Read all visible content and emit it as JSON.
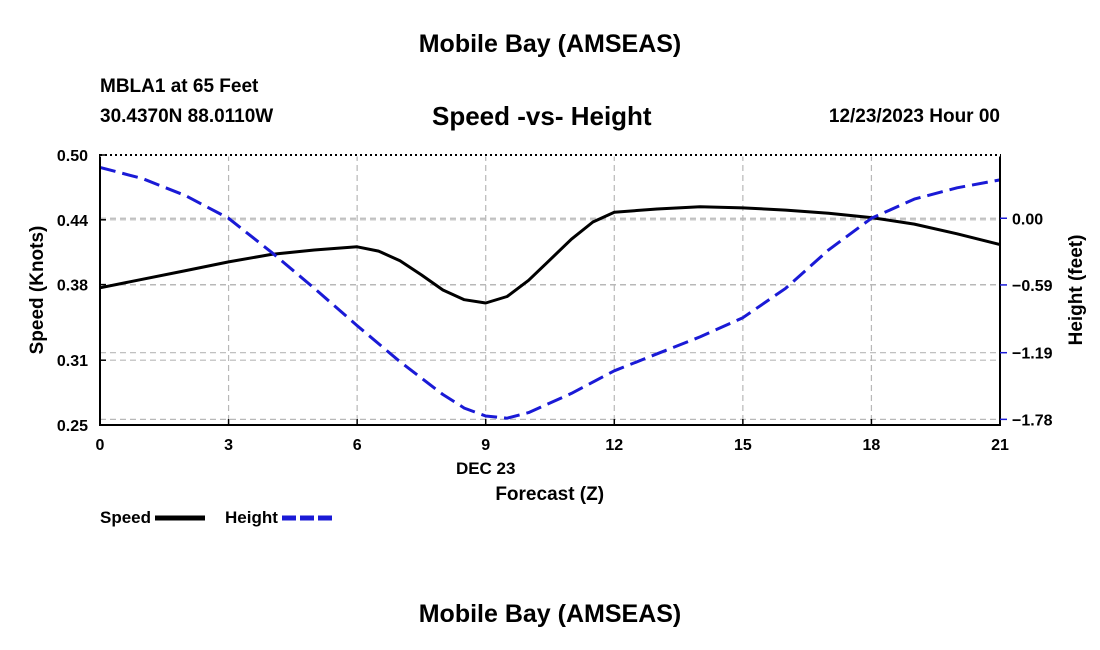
{
  "page": {
    "top_title": "Mobile Bay (AMSEAS)",
    "station": "MBLA1 at 65 Feet",
    "coords": "30.4370N  88.0110W",
    "subtitle": "Speed -vs- Height",
    "datetime": "12/23/2023 Hour 00",
    "bottom_title": "Mobile Bay (AMSEAS)"
  },
  "legend": {
    "items": [
      {
        "label": "Speed",
        "color": "#000000",
        "dash": "solid"
      },
      {
        "label": "Height",
        "color": "#1a1ad6",
        "dash": "dashed"
      }
    ]
  },
  "chart_data": {
    "type": "line",
    "title": "Speed -vs- Height",
    "xlabel": "Forecast (Z)",
    "xlabel_date": "DEC 23",
    "ylabel_left": "Speed (Knots)",
    "ylabel_right": "Height (feet)",
    "x_ticks": [
      0,
      3,
      6,
      9,
      12,
      15,
      18,
      21
    ],
    "x_range": [
      0,
      21
    ],
    "y_left_ticks": [
      "0.50",
      "0.44",
      "0.38",
      "0.31",
      "0.25"
    ],
    "y_left_range": [
      0.25,
      0.5
    ],
    "y_right_ticks": [
      "0.00",
      "−0.59",
      "−1.19",
      "−1.78"
    ],
    "y_right_range": [
      -1.83,
      0.56
    ],
    "grid": true,
    "series": [
      {
        "name": "Speed",
        "axis": "left",
        "color": "#000000",
        "dash": "solid",
        "x": [
          0,
          1,
          2,
          3,
          4,
          5,
          6,
          6.5,
          7,
          7.5,
          8,
          8.5,
          9,
          9.5,
          10,
          10.5,
          11,
          11.5,
          12,
          13,
          14,
          15,
          16,
          17,
          18,
          19,
          20,
          21
        ],
        "y": [
          0.377,
          0.385,
          0.393,
          0.401,
          0.408,
          0.412,
          0.415,
          0.411,
          0.402,
          0.389,
          0.375,
          0.366,
          0.363,
          0.369,
          0.384,
          0.403,
          0.422,
          0.438,
          0.447,
          0.45,
          0.452,
          0.451,
          0.449,
          0.446,
          0.442,
          0.436,
          0.427,
          0.417
        ]
      },
      {
        "name": "Height",
        "axis": "right",
        "color": "#1a1ad6",
        "dash": "dashed",
        "x": [
          0,
          1,
          2,
          3,
          4,
          5,
          6,
          7,
          8,
          8.5,
          9,
          9.5,
          10,
          11,
          12,
          13,
          14,
          15,
          16,
          17,
          18,
          19,
          20,
          21
        ],
        "y": [
          0.45,
          0.35,
          0.2,
          0.0,
          -0.3,
          -0.62,
          -0.95,
          -1.27,
          -1.56,
          -1.68,
          -1.75,
          -1.77,
          -1.72,
          -1.55,
          -1.35,
          -1.2,
          -1.05,
          -0.88,
          -0.62,
          -0.28,
          0.0,
          0.17,
          0.27,
          0.34
        ]
      }
    ]
  }
}
